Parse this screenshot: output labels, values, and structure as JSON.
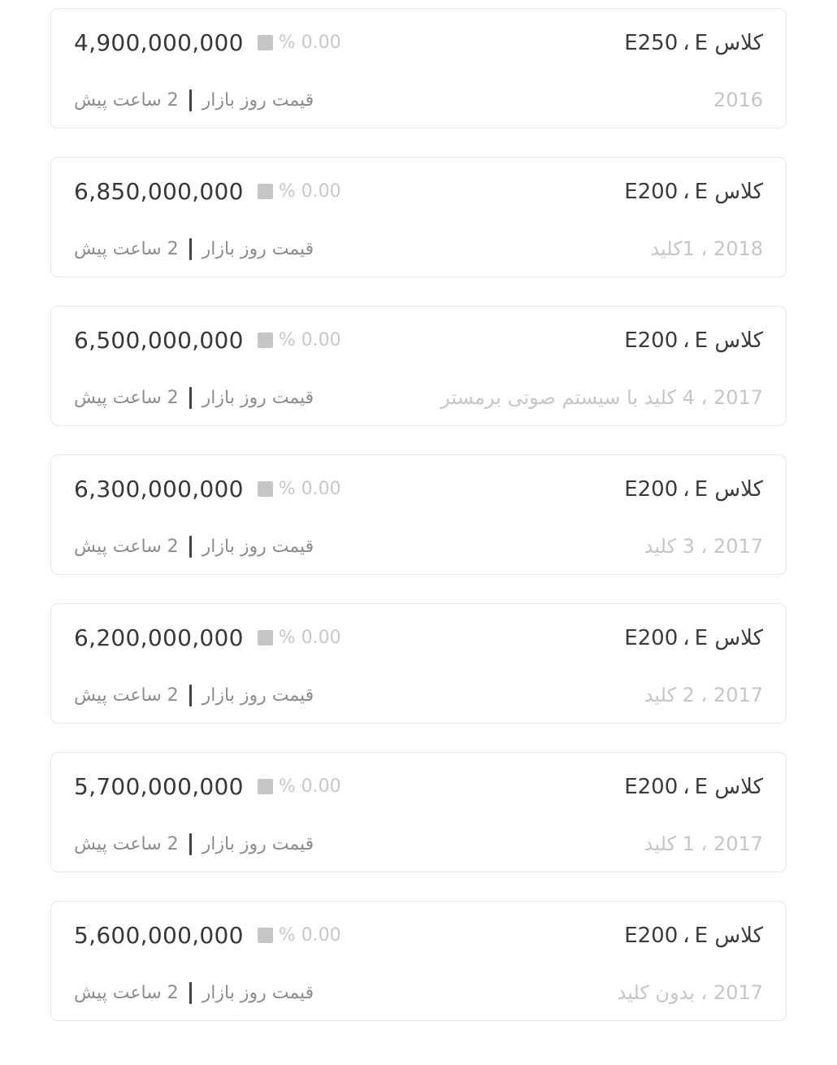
{
  "labels": {
    "title_separator": "،",
    "percent_change": "% 0.00",
    "price_type_label": "قیمت روز بازار",
    "time_ago": "2 ساعت پیش"
  },
  "colors": {
    "text_dark": "#3b3b3b",
    "text_light_gray": "#c6c6c6",
    "text_muted_gray": "#8d8d8d",
    "card_border": "#e7e7e7",
    "square_indicator": "#c6c6c6",
    "footer_divider": "#434343"
  },
  "cards": [
    {
      "model": "کلاس E",
      "trim": "E250",
      "price": "4,900,000,000",
      "percent_change": "% 0.00",
      "details": "2016",
      "price_type_label": "قیمت روز بازار",
      "time_ago": "2 ساعت پیش"
    },
    {
      "model": "کلاس E",
      "trim": "E200",
      "price": "6,850,000,000",
      "percent_change": "% 0.00",
      "details": "2018 ، 1کلید",
      "price_type_label": "قیمت روز بازار",
      "time_ago": "2 ساعت پیش"
    },
    {
      "model": "کلاس E",
      "trim": "E200",
      "price": "6,500,000,000",
      "percent_change": "% 0.00",
      "details": "2017 ، 4 کلید با سیستم صوتی برمستر",
      "price_type_label": "قیمت روز بازار",
      "time_ago": "2 ساعت پیش"
    },
    {
      "model": "کلاس E",
      "trim": "E200",
      "price": "6,300,000,000",
      "percent_change": "% 0.00",
      "details": "2017 ، 3 کلید",
      "price_type_label": "قیمت روز بازار",
      "time_ago": "2 ساعت پیش"
    },
    {
      "model": "کلاس E",
      "trim": "E200",
      "price": "6,200,000,000",
      "percent_change": "% 0.00",
      "details": "2017 ، 2 کلید",
      "price_type_label": "قیمت روز بازار",
      "time_ago": "2 ساعت پیش"
    },
    {
      "model": "کلاس E",
      "trim": "E200",
      "price": "5,700,000,000",
      "percent_change": "% 0.00",
      "details": "2017 ، 1 کلید",
      "price_type_label": "قیمت روز بازار",
      "time_ago": "2 ساعت پیش"
    },
    {
      "model": "کلاس E",
      "trim": "E200",
      "price": "5,600,000,000",
      "percent_change": "% 0.00",
      "details": "2017 ، بدون کلید",
      "price_type_label": "قیمت روز بازار",
      "time_ago": "2 ساعت پیش"
    }
  ]
}
